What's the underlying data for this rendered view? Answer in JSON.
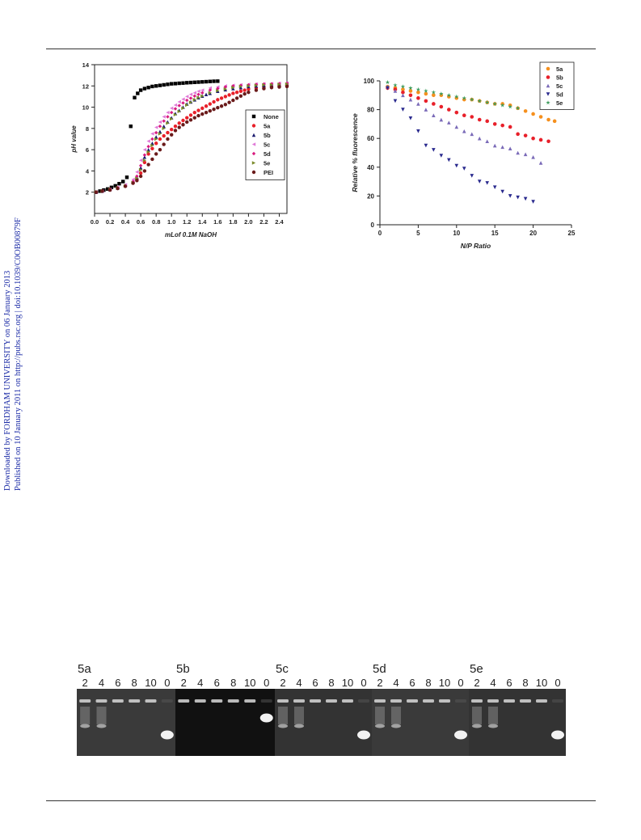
{
  "side_note": {
    "line1": "Downloaded by FORDHAM UNIVERSITY on 06 January 2013",
    "line2": "Published on 10 January 2011 on http://pubs.rsc.org | doi:10.1039/C0OB00879F"
  },
  "chart_data": [
    {
      "type": "scatter",
      "title": "",
      "xlabel": "mLof 0.1M NaOH",
      "ylabel": "pH value",
      "xlim": [
        0,
        2.5
      ],
      "ylim": [
        0,
        14
      ],
      "xticks": [
        "0.0",
        "0.2",
        "0.4",
        "0.6",
        "0.8",
        "1.0",
        "1.2",
        "1.4",
        "1.6",
        "1.8",
        "2.0",
        "2.2",
        "2.4"
      ],
      "yticks": [
        "2",
        "4",
        "6",
        "8",
        "10",
        "12",
        "14"
      ],
      "legend_position": "right",
      "series": [
        {
          "name": "None",
          "color": "#000000",
          "marker": "square",
          "x": [
            0.02,
            0.07,
            0.12,
            0.17,
            0.22,
            0.27,
            0.32,
            0.37,
            0.42,
            0.47,
            0.52,
            0.56,
            0.6,
            0.65,
            0.7,
            0.75,
            0.8,
            0.85,
            0.9,
            0.95,
            1.0,
            1.05,
            1.1,
            1.15,
            1.2,
            1.25,
            1.3,
            1.35,
            1.4,
            1.45,
            1.5,
            1.55,
            1.6
          ],
          "y": [
            2.0,
            2.1,
            2.2,
            2.3,
            2.45,
            2.6,
            2.8,
            3.0,
            3.4,
            8.2,
            10.9,
            11.3,
            11.6,
            11.75,
            11.85,
            11.95,
            12.0,
            12.05,
            12.1,
            12.15,
            12.2,
            12.22,
            12.25,
            12.27,
            12.3,
            12.32,
            12.34,
            12.36,
            12.38,
            12.4,
            12.42,
            12.44,
            12.45
          ]
        },
        {
          "name": "5a",
          "color": "#e8202a",
          "marker": "circle",
          "x": [
            0.02,
            0.1,
            0.2,
            0.3,
            0.4,
            0.5,
            0.55,
            0.6,
            0.65,
            0.7,
            0.75,
            0.8,
            0.85,
            0.9,
            0.95,
            1.0,
            1.05,
            1.1,
            1.15,
            1.2,
            1.25,
            1.3,
            1.35,
            1.4,
            1.45,
            1.5,
            1.55,
            1.6,
            1.65,
            1.7,
            1.75,
            1.8,
            1.85,
            1.9,
            1.95,
            2.0,
            2.1,
            2.2,
            2.3,
            2.4,
            2.5
          ],
          "y": [
            2.0,
            2.1,
            2.25,
            2.4,
            2.6,
            2.9,
            3.2,
            3.8,
            4.8,
            5.6,
            6.1,
            6.6,
            7.0,
            7.3,
            7.6,
            7.9,
            8.2,
            8.5,
            8.75,
            9.0,
            9.25,
            9.5,
            9.7,
            9.9,
            10.1,
            10.3,
            10.5,
            10.7,
            10.85,
            11.0,
            11.15,
            11.3,
            11.4,
            11.5,
            11.6,
            11.7,
            11.8,
            11.9,
            11.95,
            12.0,
            12.05
          ]
        },
        {
          "name": "5b",
          "color": "#1a1a6e",
          "marker": "triangle-up",
          "x": [
            0.02,
            0.1,
            0.2,
            0.3,
            0.4,
            0.5,
            0.55,
            0.6,
            0.65,
            0.7,
            0.75,
            0.8,
            0.85,
            0.9,
            0.95,
            1.0,
            1.05,
            1.1,
            1.15,
            1.2,
            1.25,
            1.3,
            1.35,
            1.4,
            1.45,
            1.5,
            1.6,
            1.7,
            1.8,
            1.9,
            2.0,
            2.1,
            2.2,
            2.3,
            2.4,
            2.5
          ],
          "y": [
            2.0,
            2.1,
            2.25,
            2.4,
            2.65,
            3.0,
            3.4,
            4.3,
            5.3,
            6.0,
            6.6,
            7.2,
            7.7,
            8.2,
            8.6,
            9.0,
            9.4,
            9.7,
            10.0,
            10.3,
            10.5,
            10.7,
            10.9,
            11.05,
            11.2,
            11.3,
            11.5,
            11.65,
            11.75,
            11.85,
            11.95,
            12.0,
            12.05,
            12.1,
            12.12,
            12.15
          ]
        },
        {
          "name": "5c",
          "color": "#e07ad8",
          "marker": "triangle-left",
          "x": [
            0.02,
            0.1,
            0.2,
            0.3,
            0.4,
            0.5,
            0.55,
            0.6,
            0.65,
            0.7,
            0.75,
            0.8,
            0.85,
            0.9,
            0.95,
            1.0,
            1.05,
            1.1,
            1.15,
            1.2,
            1.25,
            1.3,
            1.35,
            1.4,
            1.5,
            1.6,
            1.7,
            1.8,
            1.9,
            2.0,
            2.1,
            2.2,
            2.3,
            2.4,
            2.5
          ],
          "y": [
            2.0,
            2.1,
            2.25,
            2.45,
            2.7,
            3.2,
            3.9,
            5.0,
            6.0,
            6.8,
            7.5,
            8.1,
            8.6,
            9.1,
            9.5,
            9.9,
            10.2,
            10.5,
            10.75,
            11.0,
            11.2,
            11.35,
            11.5,
            11.6,
            11.8,
            11.9,
            12.0,
            12.05,
            12.1,
            12.15,
            12.18,
            12.2,
            12.22,
            12.25,
            12.27
          ]
        },
        {
          "name": "5d",
          "color": "#d81b7e",
          "marker": "diamond",
          "x": [
            0.02,
            0.1,
            0.2,
            0.3,
            0.4,
            0.5,
            0.55,
            0.6,
            0.65,
            0.7,
            0.75,
            0.8,
            0.85,
            0.9,
            0.95,
            1.0,
            1.05,
            1.1,
            1.15,
            1.2,
            1.25,
            1.3,
            1.35,
            1.4,
            1.5,
            1.6,
            1.7,
            1.8,
            1.9,
            2.0,
            2.1,
            2.2,
            2.3,
            2.4,
            2.5
          ],
          "y": [
            2.0,
            2.1,
            2.25,
            2.4,
            2.6,
            3.0,
            3.5,
            4.5,
            5.5,
            6.3,
            7.0,
            7.6,
            8.2,
            8.7,
            9.1,
            9.5,
            9.85,
            10.15,
            10.4,
            10.65,
            10.85,
            11.05,
            11.2,
            11.35,
            11.6,
            11.75,
            11.9,
            12.0,
            12.05,
            12.1,
            12.15,
            12.18,
            12.2,
            12.22,
            12.25
          ]
        },
        {
          "name": "5e",
          "color": "#7a8a2a",
          "marker": "triangle-right",
          "x": [
            0.02,
            0.1,
            0.2,
            0.3,
            0.4,
            0.5,
            0.55,
            0.6,
            0.65,
            0.7,
            0.75,
            0.8,
            0.85,
            0.9,
            0.95,
            1.0,
            1.05,
            1.1,
            1.15,
            1.2,
            1.25,
            1.3,
            1.35,
            1.4,
            1.5,
            1.6,
            1.7,
            1.8,
            1.9,
            2.0,
            2.1,
            2.2,
            2.3,
            2.4,
            2.5
          ],
          "y": [
            2.0,
            2.1,
            2.25,
            2.4,
            2.6,
            2.9,
            3.3,
            4.1,
            5.0,
            5.8,
            6.4,
            7.0,
            7.5,
            8.0,
            8.5,
            8.9,
            9.3,
            9.6,
            9.9,
            10.2,
            10.45,
            10.7,
            10.9,
            11.05,
            11.35,
            11.55,
            11.7,
            11.85,
            11.95,
            12.0,
            12.05,
            12.1,
            12.12,
            12.15,
            12.18
          ]
        },
        {
          "name": "PEI",
          "color": "#6a1a1a",
          "marker": "circle",
          "x": [
            0.02,
            0.1,
            0.2,
            0.3,
            0.4,
            0.5,
            0.55,
            0.6,
            0.65,
            0.7,
            0.75,
            0.8,
            0.85,
            0.9,
            0.95,
            1.0,
            1.05,
            1.1,
            1.15,
            1.2,
            1.25,
            1.3,
            1.35,
            1.4,
            1.45,
            1.5,
            1.55,
            1.6,
            1.65,
            1.7,
            1.75,
            1.8,
            1.85,
            1.9,
            1.95,
            2.0,
            2.1,
            2.2,
            2.3,
            2.4,
            2.5
          ],
          "y": [
            2.0,
            2.1,
            2.2,
            2.35,
            2.55,
            2.85,
            3.1,
            3.5,
            4.0,
            4.6,
            5.1,
            5.6,
            6.0,
            6.5,
            7.0,
            7.4,
            7.8,
            8.1,
            8.35,
            8.6,
            8.8,
            9.0,
            9.2,
            9.35,
            9.5,
            9.65,
            9.8,
            9.95,
            10.1,
            10.25,
            10.45,
            10.65,
            10.85,
            11.05,
            11.25,
            11.4,
            11.6,
            11.75,
            11.85,
            11.9,
            11.95
          ]
        }
      ]
    },
    {
      "type": "scatter",
      "title": "",
      "xlabel": "N/P Ratio",
      "ylabel": "Relative % fluorescence",
      "xlim": [
        0,
        25
      ],
      "ylim": [
        0,
        100
      ],
      "xticks": [
        "0",
        "5",
        "10",
        "15",
        "20",
        "25"
      ],
      "yticks": [
        "0",
        "20",
        "40",
        "60",
        "80",
        "100"
      ],
      "legend_position": "top-right",
      "series": [
        {
          "name": "5a",
          "color": "#f5901e",
          "marker": "circle",
          "x": [
            1,
            2,
            3,
            4,
            5,
            6,
            7,
            8,
            9,
            10,
            11,
            12,
            13,
            14,
            15,
            16,
            17,
            18,
            19,
            20,
            21,
            22,
            22.8
          ],
          "y": [
            96,
            95,
            94,
            93,
            92,
            91,
            90,
            90,
            89,
            88,
            87,
            87,
            86,
            85,
            84,
            84,
            83,
            81,
            79,
            77,
            75,
            73,
            72
          ]
        },
        {
          "name": "5b",
          "color": "#e8202a",
          "marker": "circle",
          "x": [
            1,
            2,
            3,
            4,
            5,
            6,
            7,
            8,
            9,
            10,
            11,
            12,
            13,
            14,
            15,
            16,
            17,
            18,
            19,
            20,
            21,
            22
          ],
          "y": [
            95,
            94,
            92,
            90,
            88,
            86,
            84,
            82,
            80,
            78,
            76,
            75,
            73,
            72,
            70,
            69,
            68,
            63,
            62,
            60,
            59,
            58
          ]
        },
        {
          "name": "5c",
          "color": "#7a6ab8",
          "marker": "triangle-up",
          "x": [
            1,
            2,
            3,
            4,
            5,
            6,
            7,
            8,
            9,
            10,
            11,
            12,
            13,
            14,
            15,
            16,
            17,
            18,
            19,
            20,
            21
          ],
          "y": [
            96,
            93,
            90,
            87,
            84,
            80,
            76,
            73,
            71,
            68,
            65,
            63,
            60,
            58,
            55,
            54,
            53,
            50,
            49,
            47,
            43
          ]
        },
        {
          "name": "5d",
          "color": "#2a2a8e",
          "marker": "triangle-down",
          "x": [
            1,
            2,
            3,
            4,
            5,
            6,
            7,
            8,
            9,
            10,
            11,
            12,
            13,
            14,
            15,
            16,
            17,
            18,
            19,
            20
          ],
          "y": [
            95,
            86,
            80,
            74,
            65,
            55,
            52,
            48,
            45,
            41,
            39,
            34,
            30,
            29,
            26,
            23,
            20,
            19,
            18,
            16
          ]
        },
        {
          "name": "5e",
          "color": "#3a9a5a",
          "marker": "star",
          "x": [
            1,
            2,
            3,
            4,
            5,
            6,
            7,
            8,
            9,
            10,
            11,
            12,
            13,
            14,
            15,
            16,
            17,
            18
          ],
          "y": [
            99,
            97,
            96,
            95,
            94,
            93,
            92,
            91,
            90,
            89,
            88,
            87,
            86,
            85,
            84,
            83,
            82,
            81
          ]
        }
      ]
    }
  ],
  "gel": {
    "groups": [
      {
        "label": "5a",
        "lanes": [
          "2",
          "4",
          "6",
          "8",
          "10",
          "0"
        ]
      },
      {
        "label": "5b",
        "lanes": [
          "2",
          "4",
          "6",
          "8",
          "10",
          "0"
        ]
      },
      {
        "label": "5c",
        "lanes": [
          "2",
          "4",
          "6",
          "8",
          "10",
          "0"
        ]
      },
      {
        "label": "5d",
        "lanes": [
          "2",
          "4",
          "6",
          "8",
          "10",
          "0"
        ]
      },
      {
        "label": "5e",
        "lanes": [
          "2",
          "4",
          "6",
          "8",
          "10",
          "0"
        ]
      }
    ]
  }
}
